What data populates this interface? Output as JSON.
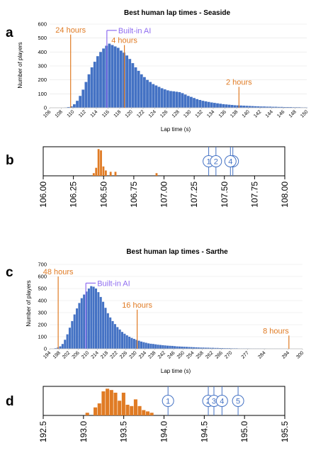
{
  "colors": {
    "bar": "#4472c4",
    "bar_edge": "#3b64ad",
    "human_marker": "#e07b24",
    "ai_marker": "#8e6cf0",
    "circle": "#4472c4",
    "axis": "#888888"
  },
  "panels": {
    "a_label": "a",
    "b_label": "b",
    "c_label": "c",
    "d_label": "d"
  },
  "chart_data": [
    {
      "id": "a",
      "type": "bar",
      "title": "Best human lap times - Seaside",
      "xlabel": "Lap time (s)",
      "ylabel": "Number of players",
      "ylim": [
        0,
        600
      ],
      "yticks": [
        "0",
        "100",
        "200",
        "300",
        "400",
        "500",
        "600"
      ],
      "xlim": [
        106,
        150
      ],
      "xticks": [
        "106",
        "108",
        "110",
        "112",
        "114",
        "116",
        "118",
        "120",
        "122",
        "124",
        "126",
        "128",
        "130",
        "132",
        "134",
        "136",
        "138",
        "140",
        "142",
        "144",
        "146",
        "148",
        "150"
      ],
      "grid": true,
      "bin_start": 108.5,
      "bin_width": 0.5,
      "values": [
        2,
        5,
        10,
        25,
        50,
        85,
        130,
        185,
        240,
        290,
        330,
        370,
        400,
        425,
        445,
        460,
        450,
        440,
        430,
        410,
        395,
        375,
        350,
        320,
        290,
        265,
        240,
        220,
        200,
        185,
        170,
        160,
        150,
        140,
        132,
        125,
        120,
        118,
        115,
        112,
        105,
        95,
        85,
        78,
        70,
        62,
        56,
        50,
        46,
        42,
        38,
        35,
        32,
        29,
        26,
        24,
        22,
        20,
        18,
        17,
        16,
        15,
        14,
        13,
        12,
        11,
        10,
        9,
        9,
        8,
        8,
        7,
        7,
        6,
        6,
        5,
        5,
        5,
        4,
        4,
        4,
        3,
        3,
        3,
        3,
        2,
        2,
        2
      ],
      "annotations": [
        {
          "label": "24 hours",
          "x": 109.6,
          "y_top": 525,
          "color": "human_marker"
        },
        {
          "label": "Built-in AI",
          "x": 115.8,
          "y_top": 555,
          "color": "ai_marker"
        },
        {
          "label": "4 hours",
          "x": 118.8,
          "y_top": 450,
          "color": "human_marker"
        },
        {
          "label": "2 hours",
          "x": 138.4,
          "y_top": 150,
          "color": "human_marker"
        }
      ]
    },
    {
      "id": "b",
      "type": "bar",
      "xlim": [
        106.0,
        108.0
      ],
      "xticks": [
        "106.00",
        "106.25",
        "106.50",
        "106.75",
        "107.00",
        "107.25",
        "107.50",
        "107.75",
        "108.00"
      ],
      "bin_width": 0.02,
      "bars": [
        {
          "x": 106.42,
          "v": 0.1
        },
        {
          "x": 106.44,
          "v": 0.3
        },
        {
          "x": 106.46,
          "v": 1.0
        },
        {
          "x": 106.48,
          "v": 0.95
        },
        {
          "x": 106.5,
          "v": 0.35
        },
        {
          "x": 106.52,
          "v": 0.2
        },
        {
          "x": 106.56,
          "v": 0.15
        },
        {
          "x": 106.6,
          "v": 0.15
        },
        {
          "x": 106.94,
          "v": 0.1
        }
      ],
      "agents": [
        {
          "label": "1",
          "x": 107.37
        },
        {
          "label": "2",
          "x": 107.43
        },
        {
          "label": "3",
          "x": 107.57
        },
        {
          "label": "4",
          "x": 107.55
        }
      ]
    },
    {
      "id": "c",
      "type": "bar",
      "title": "Best human lap times - Sarthe",
      "xlabel": "Lap time (s)",
      "ylabel": "Number of players",
      "ylim": [
        0,
        700
      ],
      "yticks": [
        "0",
        "100",
        "200",
        "300",
        "400",
        "500",
        "600",
        "700"
      ],
      "xlim": [
        194,
        300
      ],
      "xticks": [
        "194",
        "198",
        "202",
        "206",
        "210",
        "214",
        "218",
        "222",
        "226",
        "230",
        "234",
        "238",
        "242",
        "246",
        "250",
        "254",
        "258",
        "262",
        "266",
        "270",
        "277",
        "284",
        "294",
        "300"
      ],
      "grid": true,
      "bin_start": 196,
      "bin_width": 1,
      "values": [
        5,
        10,
        20,
        40,
        75,
        120,
        175,
        230,
        285,
        335,
        380,
        420,
        450,
        475,
        500,
        520,
        515,
        500,
        470,
        430,
        390,
        340,
        295,
        260,
        230,
        205,
        180,
        160,
        140,
        125,
        112,
        100,
        90,
        82,
        74,
        67,
        60,
        55,
        50,
        45,
        42,
        40,
        37,
        34,
        32,
        30,
        28,
        26,
        25,
        24,
        22,
        20,
        19,
        18,
        17,
        16,
        15,
        14,
        13,
        12,
        11,
        10,
        10,
        9,
        9,
        8,
        8,
        7,
        7,
        6,
        6,
        5,
        5,
        5,
        4,
        4,
        4,
        3,
        3,
        3,
        3,
        3,
        2,
        2,
        2,
        2,
        2,
        2,
        2,
        1,
        1,
        1,
        1,
        1,
        1,
        1,
        1,
        1
      ],
      "annotations": [
        {
          "label": "48 hours",
          "x": 197.6,
          "y_top": 600,
          "color": "human_marker"
        },
        {
          "label": "Built-in AI",
          "x": 209.2,
          "y_top": 545,
          "color": "ai_marker"
        },
        {
          "label": "16 hours",
          "x": 230.7,
          "y_top": 325,
          "color": "human_marker"
        },
        {
          "label": "8 hours",
          "x": 294.3,
          "y_top": 110,
          "color": "human_marker"
        }
      ]
    },
    {
      "id": "d",
      "type": "bar",
      "xlim": [
        192.5,
        195.5
      ],
      "xticks": [
        "192.5",
        "193.0",
        "193.5",
        "194.0",
        "194.5",
        "195.0",
        "195.5"
      ],
      "bin_width": 0.05,
      "bars": [
        {
          "x": 193.05,
          "v": 0.1
        },
        {
          "x": 193.15,
          "v": 0.3
        },
        {
          "x": 193.2,
          "v": 0.45
        },
        {
          "x": 193.25,
          "v": 0.9
        },
        {
          "x": 193.3,
          "v": 1.0
        },
        {
          "x": 193.35,
          "v": 0.95
        },
        {
          "x": 193.4,
          "v": 0.85
        },
        {
          "x": 193.45,
          "v": 0.55
        },
        {
          "x": 193.5,
          "v": 0.85
        },
        {
          "x": 193.55,
          "v": 0.4
        },
        {
          "x": 193.6,
          "v": 0.35
        },
        {
          "x": 193.65,
          "v": 0.6
        },
        {
          "x": 193.7,
          "v": 0.35
        },
        {
          "x": 193.75,
          "v": 0.2
        },
        {
          "x": 193.8,
          "v": 0.15
        },
        {
          "x": 193.85,
          "v": 0.1
        }
      ],
      "agents": [
        {
          "label": "1",
          "x": 194.05
        },
        {
          "label": "2",
          "x": 194.55
        },
        {
          "label": "3",
          "x": 194.62
        },
        {
          "label": "4",
          "x": 194.72
        },
        {
          "label": "5",
          "x": 194.92
        }
      ]
    }
  ]
}
